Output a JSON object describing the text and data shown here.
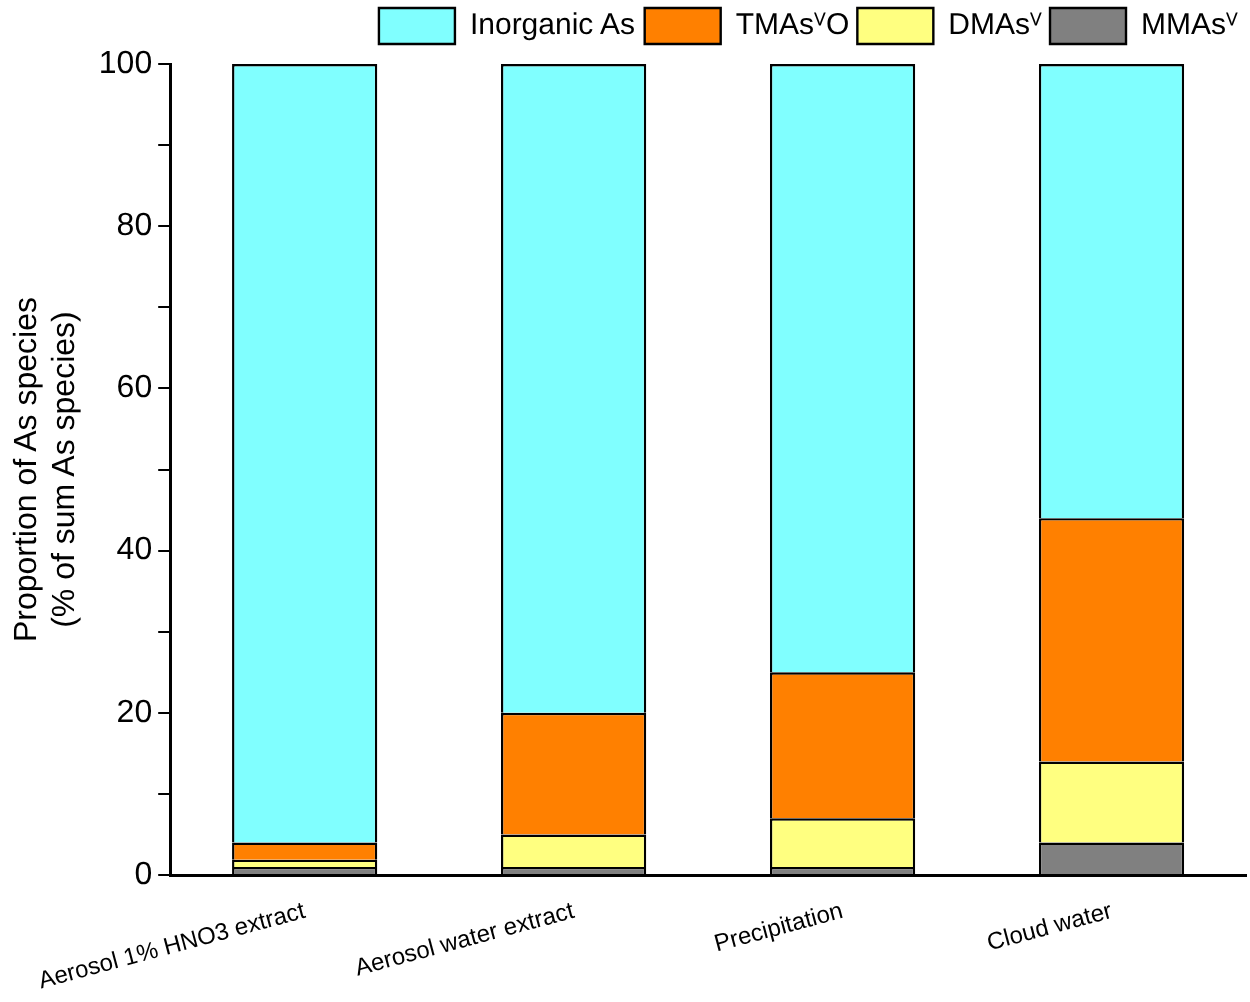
{
  "chart_data": {
    "type": "bar",
    "stacked": true,
    "ylabel": "Proportion of As species\n(% of sum As species)",
    "categories": [
      "Aerosol 1% HNO3 extract",
      "Aerosol water extract",
      "Precipitation",
      "Cloud water"
    ],
    "series": [
      {
        "name": "MMAsⱽ",
        "color": "#808080",
        "values": [
          1,
          1,
          1,
          4
        ]
      },
      {
        "name": "DMAsⱽ",
        "color": "#ffff80",
        "values": [
          0.9,
          4,
          6,
          10
        ]
      },
      {
        "name": "TMAsⱽO",
        "color": "#ff8000",
        "values": [
          2.1,
          15,
          18,
          30
        ]
      },
      {
        "name": "Inorganic As",
        "color": "#80ffff",
        "values": [
          96,
          80,
          75,
          56
        ]
      }
    ],
    "ylim": [
      0,
      100
    ],
    "yticks": [
      0,
      {
        "value": 10,
        "label": null
      },
      20,
      {
        "value": 30,
        "label": null
      },
      40,
      {
        "value": 50,
        "label": null
      },
      60,
      {
        "value": 70,
        "label": null
      },
      80,
      {
        "value": 90,
        "label": null
      },
      100
    ],
    "grid": false,
    "legend": "top"
  }
}
